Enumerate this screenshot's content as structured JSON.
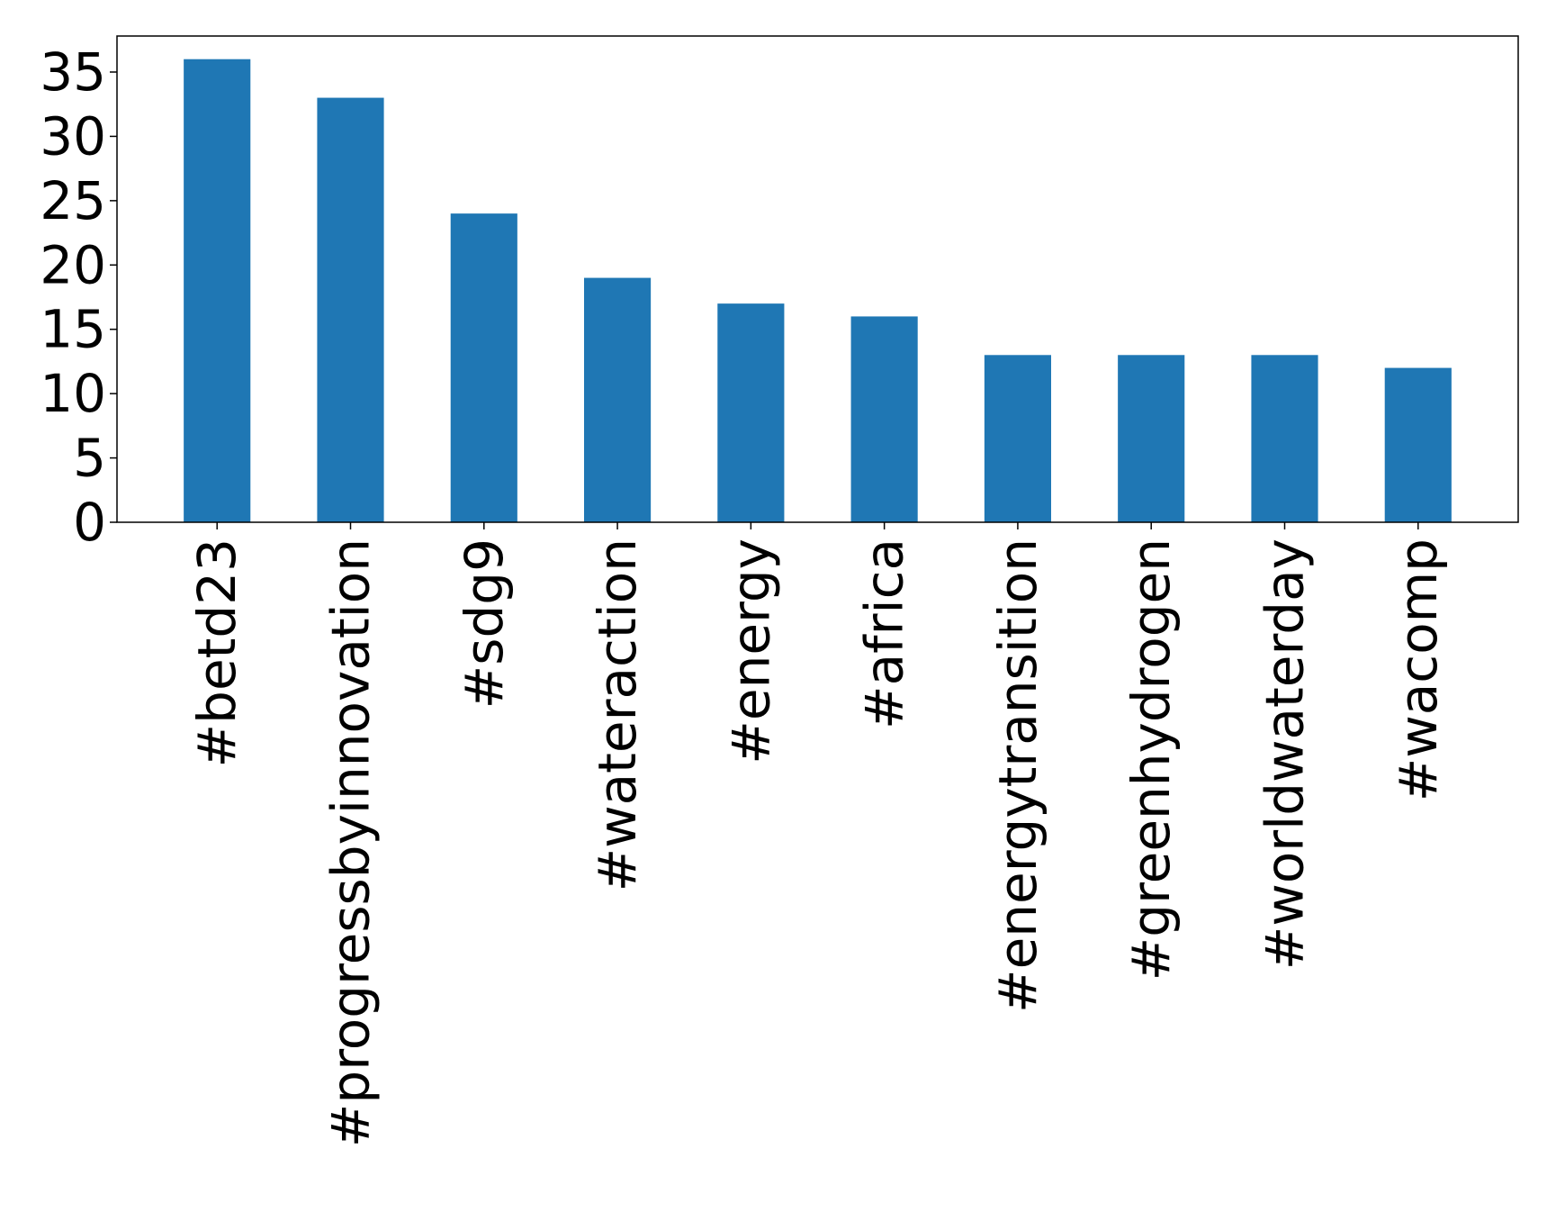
{
  "chart_data": {
    "type": "bar",
    "title": "",
    "xlabel": "",
    "ylabel": "",
    "categories": [
      "#betd23",
      "#progressbyinnovation",
      "#sdg9",
      "#wateraction",
      "#energy",
      "#africa",
      "#energytransition",
      "#greenhydrogen",
      "#worldwaterday",
      "#wacomp"
    ],
    "values": [
      36,
      33,
      24,
      19,
      17,
      16,
      13,
      13,
      13,
      12
    ],
    "ylim": [
      0,
      37.8
    ],
    "yticks": [
      0,
      5,
      10,
      15,
      20,
      25,
      30,
      35
    ],
    "grid": false,
    "legend": false,
    "bar_color": "#1f77b4"
  }
}
